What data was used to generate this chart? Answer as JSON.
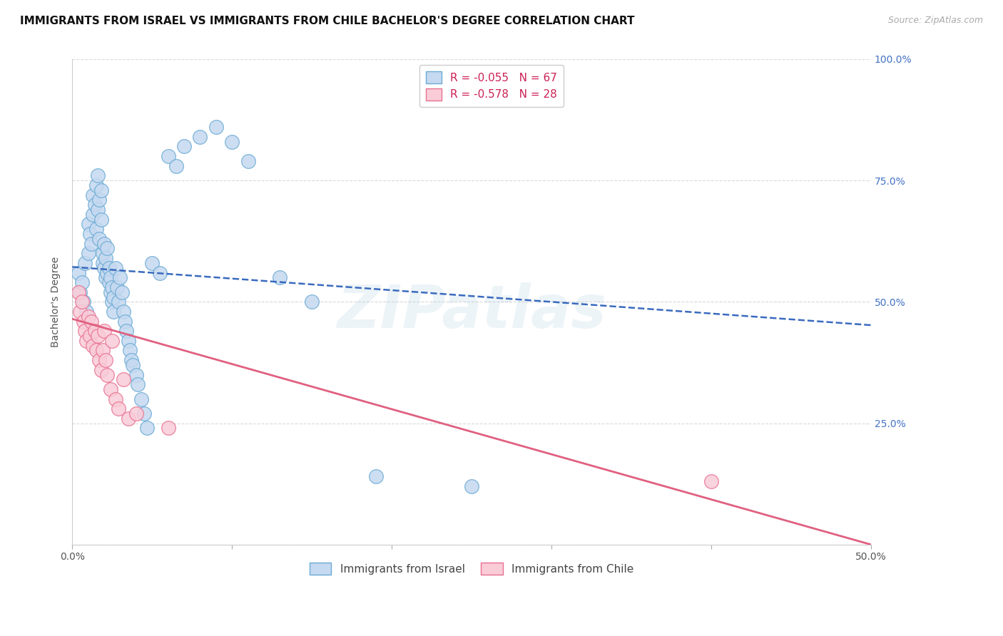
{
  "title": "IMMIGRANTS FROM ISRAEL VS IMMIGRANTS FROM CHILE BACHELOR'S DEGREE CORRELATION CHART",
  "source_text": "Source: ZipAtlas.com",
  "ylabel": "Bachelor's Degree",
  "xlim": [
    0.0,
    0.5
  ],
  "ylim": [
    0.0,
    1.0
  ],
  "israel_color": "#c5d9f0",
  "israel_edge_color": "#6aaad4",
  "chile_color": "#f9ccd8",
  "chile_edge_color": "#e87090",
  "israel_R": -0.055,
  "israel_N": 67,
  "chile_R": -0.578,
  "chile_N": 28,
  "legend_label_israel": "Immigrants from Israel",
  "legend_label_chile": "Immigrants from Chile",
  "israel_scatter_x": [
    0.004,
    0.005,
    0.006,
    0.007,
    0.008,
    0.009,
    0.01,
    0.01,
    0.011,
    0.012,
    0.013,
    0.013,
    0.014,
    0.015,
    0.015,
    0.016,
    0.016,
    0.017,
    0.017,
    0.018,
    0.018,
    0.019,
    0.019,
    0.02,
    0.02,
    0.021,
    0.021,
    0.022,
    0.022,
    0.023,
    0.023,
    0.024,
    0.024,
    0.025,
    0.025,
    0.026,
    0.026,
    0.027,
    0.028,
    0.029,
    0.03,
    0.031,
    0.032,
    0.033,
    0.034,
    0.035,
    0.036,
    0.037,
    0.038,
    0.04,
    0.041,
    0.043,
    0.045,
    0.047,
    0.05,
    0.055,
    0.06,
    0.065,
    0.07,
    0.08,
    0.09,
    0.1,
    0.11,
    0.13,
    0.15,
    0.19,
    0.25
  ],
  "israel_scatter_y": [
    0.56,
    0.52,
    0.54,
    0.5,
    0.58,
    0.48,
    0.6,
    0.66,
    0.64,
    0.62,
    0.68,
    0.72,
    0.7,
    0.65,
    0.74,
    0.76,
    0.69,
    0.63,
    0.71,
    0.67,
    0.73,
    0.58,
    0.6,
    0.57,
    0.62,
    0.55,
    0.59,
    0.56,
    0.61,
    0.54,
    0.57,
    0.52,
    0.55,
    0.5,
    0.53,
    0.48,
    0.51,
    0.57,
    0.53,
    0.5,
    0.55,
    0.52,
    0.48,
    0.46,
    0.44,
    0.42,
    0.4,
    0.38,
    0.37,
    0.35,
    0.33,
    0.3,
    0.27,
    0.24,
    0.58,
    0.56,
    0.8,
    0.78,
    0.82,
    0.84,
    0.86,
    0.83,
    0.79,
    0.55,
    0.5,
    0.14,
    0.12
  ],
  "chile_scatter_x": [
    0.004,
    0.005,
    0.006,
    0.007,
    0.008,
    0.009,
    0.01,
    0.011,
    0.012,
    0.013,
    0.014,
    0.015,
    0.016,
    0.017,
    0.018,
    0.019,
    0.02,
    0.021,
    0.022,
    0.024,
    0.025,
    0.027,
    0.029,
    0.032,
    0.035,
    0.04,
    0.06,
    0.4
  ],
  "chile_scatter_y": [
    0.52,
    0.48,
    0.5,
    0.46,
    0.44,
    0.42,
    0.47,
    0.43,
    0.46,
    0.41,
    0.44,
    0.4,
    0.43,
    0.38,
    0.36,
    0.4,
    0.44,
    0.38,
    0.35,
    0.32,
    0.42,
    0.3,
    0.28,
    0.34,
    0.26,
    0.27,
    0.24,
    0.13
  ],
  "background_color": "#ffffff",
  "grid_color": "#d5d5d5",
  "title_fontsize": 11,
  "axis_label_fontsize": 10,
  "tick_fontsize": 10,
  "legend_fontsize": 11,
  "israel_line_color": "#3a6bbf",
  "chile_line_color": "#e06080",
  "watermark_text": "ZIPatlas",
  "watermark_alpha": 0.13,
  "watermark_color": "#7aaad0",
  "israel_line_intercept": 0.572,
  "israel_line_slope": -0.24,
  "chile_line_intercept": 0.465,
  "chile_line_slope": -0.93
}
